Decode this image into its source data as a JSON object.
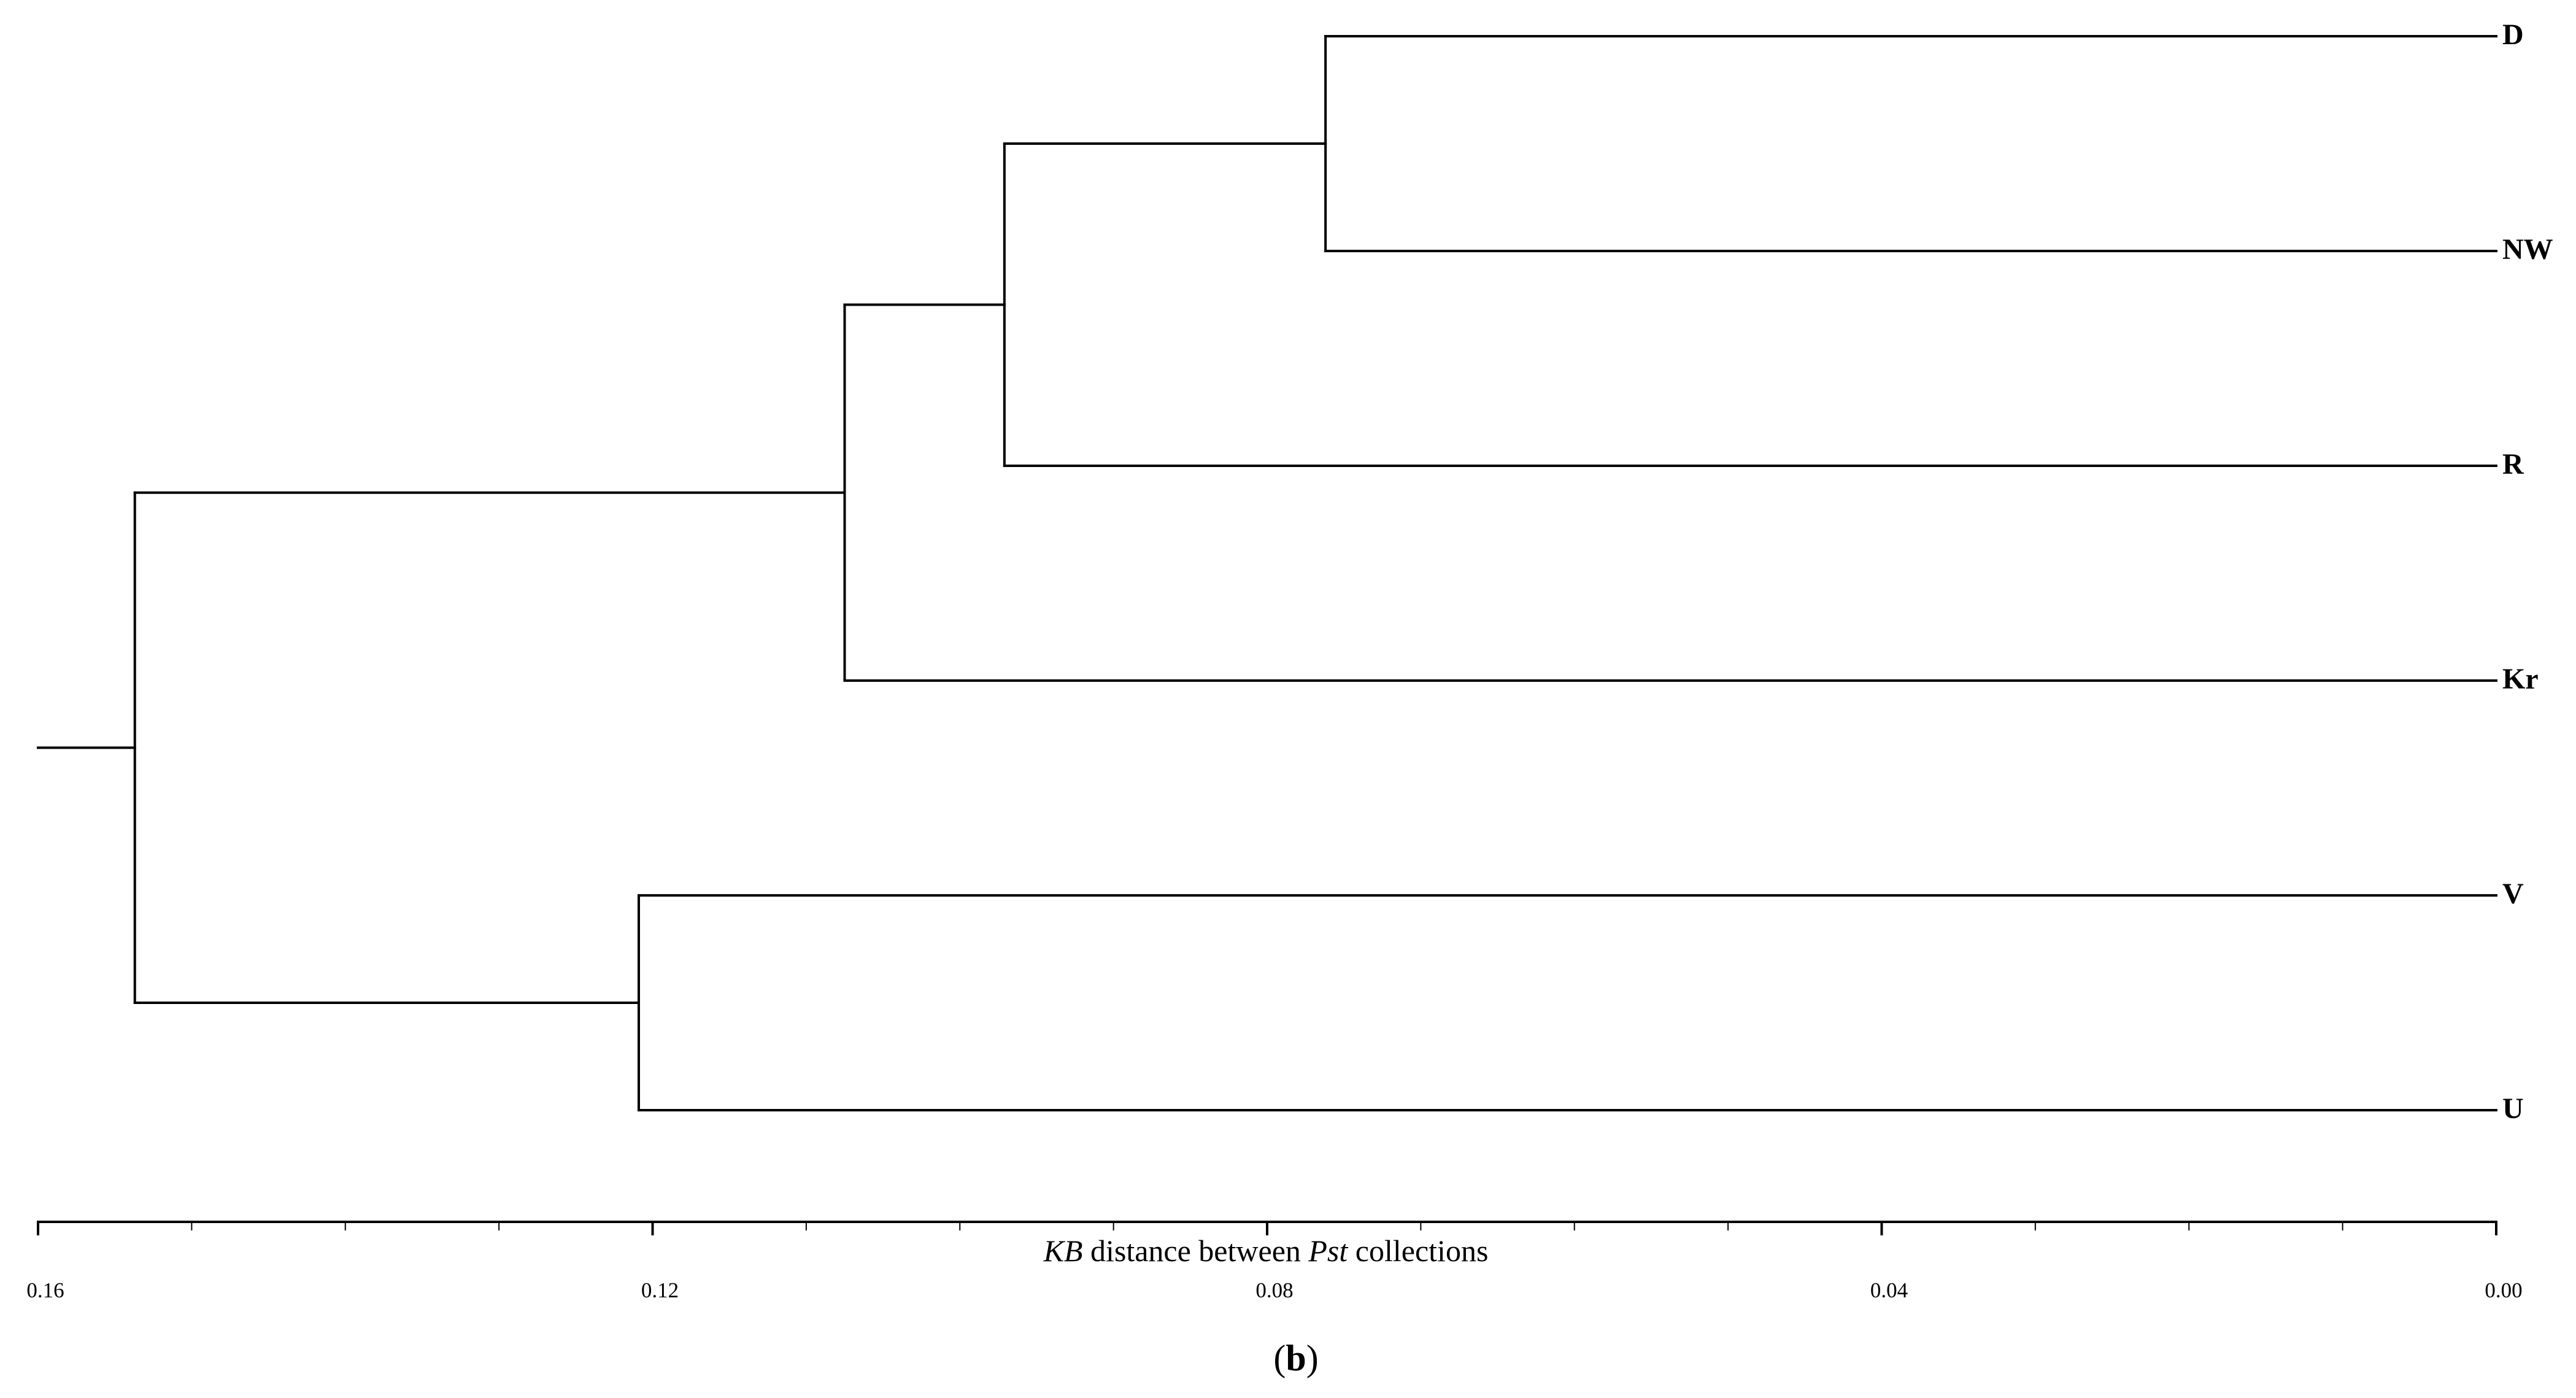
{
  "chart_data": {
    "type": "dendrogram",
    "leaves": [
      "D",
      "NW",
      "R",
      "Kr",
      "V",
      "U"
    ],
    "merges": [
      {
        "children": [
          0,
          1
        ],
        "height": 0.0762
      },
      {
        "children": [
          6,
          2
        ],
        "height": 0.0971
      },
      {
        "children": [
          7,
          3
        ],
        "height": 0.1075
      },
      {
        "children": [
          4,
          5
        ],
        "height": 0.1209
      },
      {
        "children": [
          8,
          9
        ],
        "height": 0.1537
      }
    ],
    "xlim": [
      0.16,
      0
    ],
    "xticks": [
      0.16,
      0.12,
      0.08,
      0.04,
      {
        "value": 0,
        "label": "0.00"
      }
    ],
    "xminorticks": [
      0.15,
      0.14,
      0.13,
      0.11,
      0.1,
      0.09,
      0.07,
      0.06,
      0.05,
      0.03,
      0.02,
      0.01
    ],
    "xlabel_parts": [
      {
        "text": "KB",
        "italic": true
      },
      {
        "text": " distance between ",
        "italic": false
      },
      {
        "text": "Pst",
        "italic": true
      },
      {
        "text": " collections",
        "italic": false
      }
    ],
    "caption_parts": [
      {
        "text": "(",
        "bold": false
      },
      {
        "text": "b",
        "bold": true
      },
      {
        "text": ")",
        "bold": false
      }
    ],
    "color": "#000000"
  }
}
